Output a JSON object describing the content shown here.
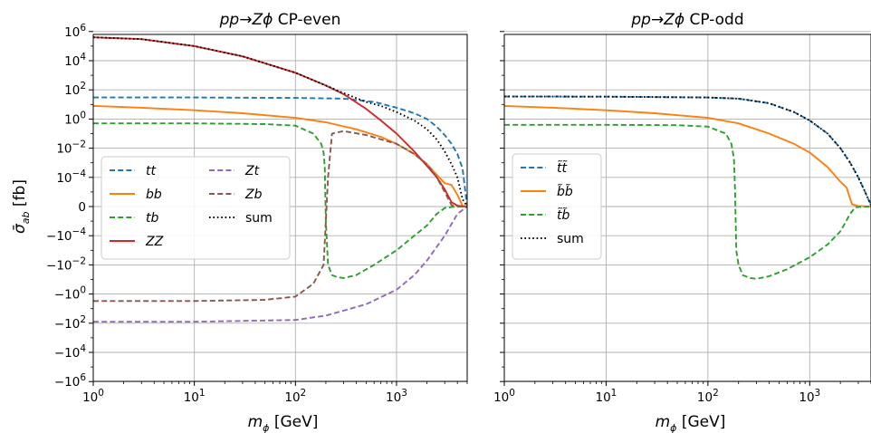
{
  "chart_data": [
    {
      "type": "line",
      "title": "pp→Zϕ CP-even",
      "xlabel": "m_ϕ [GeV]",
      "ylabel": "σ̄_ab [fb]",
      "xscale": "log",
      "yscale": "symlog",
      "xlim": [
        1,
        5000
      ],
      "ylim": [
        -2000000,
        2000000
      ],
      "xticks": [
        {
          "v": 1,
          "label": "10^0"
        },
        {
          "v": 10,
          "label": "10^1"
        },
        {
          "v": 100,
          "label": "10^2"
        },
        {
          "v": 1000,
          "label": "10^3"
        }
      ],
      "yticks": [
        {
          "v": 1000000,
          "label": "10^6"
        },
        {
          "v": 10000,
          "label": "10^4"
        },
        {
          "v": 100,
          "label": "10^2"
        },
        {
          "v": 1,
          "label": "10^0"
        },
        {
          "v": 0.01,
          "label": "10^-2"
        },
        {
          "v": 0.0001,
          "label": "10^-4"
        },
        {
          "v": 0,
          "label": "0"
        },
        {
          "v": -0.0001,
          "label": "-10^-4"
        },
        {
          "v": -0.01,
          "label": "-10^-2"
        },
        {
          "v": -1,
          "label": "-10^0"
        },
        {
          "v": -100,
          "label": "-10^2"
        },
        {
          "v": -10000,
          "label": "-10^4"
        },
        {
          "v": -1000000,
          "label": "-10^6"
        }
      ],
      "grid": true,
      "legend_position": "center-left",
      "series": [
        {
          "name": "tt",
          "color": "#1f77b4",
          "dash": "dashed",
          "x": [
            1,
            10,
            100,
            300,
            600,
            1000,
            1500,
            2000,
            2500,
            3000,
            3500,
            4000,
            4500,
            5000
          ],
          "y": [
            30,
            30,
            28,
            25,
            15,
            6,
            2.5,
            1,
            0.3,
            0.08,
            0.02,
            0.004,
            0.0004,
            0
          ]
        },
        {
          "name": "bb",
          "color": "#ff7f0e",
          "dash": "solid",
          "x": [
            1,
            3,
            10,
            30,
            100,
            200,
            400,
            700,
            1000,
            1500,
            2000,
            2500,
            3000,
            3500,
            4000,
            4500,
            5000
          ],
          "y": [
            8,
            6,
            4,
            2.5,
            1.2,
            0.6,
            0.2,
            0.06,
            0.02,
            0.004,
            0.0008,
            0.00015,
            4e-05,
            3e-05,
            8e-06,
            5e-07,
            0
          ]
        },
        {
          "name": "tb",
          "color": "#2ca02c",
          "dash": "dashed",
          "x": [
            1,
            10,
            50,
            100,
            150,
            180,
            190,
            195,
            200,
            210,
            230,
            260,
            300,
            400,
            600,
            1000,
            1500,
            2000,
            2500,
            3000,
            3500,
            3800,
            4200,
            5000
          ],
          "y": [
            0.5,
            0.5,
            0.45,
            0.35,
            0.1,
            0.02,
            0.005,
            0.0005,
            -1e-05,
            -0.01,
            -0.05,
            -0.07,
            -0.08,
            -0.05,
            -0.01,
            -0.001,
            -0.0001,
            -2e-05,
            -5e-06,
            -1e-06,
            -3e-07,
            -2e-07,
            -1e-07,
            0
          ]
        },
        {
          "name": "ZZ",
          "color": "#d62728",
          "dash": "solid",
          "x": [
            1,
            3,
            10,
            30,
            100,
            200,
            300,
            500,
            700,
            1000,
            1500,
            2000,
            2500,
            3000,
            3500,
            4000,
            4500,
            5000
          ],
          "y": [
            400000,
            300000,
            100000,
            20000,
            1500,
            200,
            50,
            5,
            0.8,
            0.1,
            0.006,
            0.0006,
            0.0001,
            1.5e-05,
            3e-06,
            6e-07,
            1e-07,
            0
          ]
        },
        {
          "name": "Zt",
          "color": "#9467bd",
          "dash": "dashed",
          "x": [
            1,
            10,
            100,
            200,
            500,
            1000,
            1500,
            2000,
            3000,
            4000,
            5000
          ],
          "y": [
            -80,
            -80,
            -60,
            -30,
            -5,
            -0.5,
            -0.05,
            -0.005,
            -0.0001,
            -5e-06,
            0
          ]
        },
        {
          "name": "Zb",
          "color": "#8c564b",
          "dash": "dashed",
          "x": [
            1,
            10,
            50,
            100,
            150,
            190,
            200,
            210,
            230,
            300,
            500,
            1000,
            1500,
            2000,
            2500,
            3000,
            3500,
            4000,
            4500,
            5000
          ],
          "y": [
            -3,
            -3,
            -2.5,
            -1.5,
            -0.2,
            -0.01,
            -1e-05,
            0.0001,
            0.1,
            0.15,
            0.08,
            0.02,
            0.004,
            0.0008,
            0.0001,
            1e-05,
            1e-06,
            3e-07,
            1e-07,
            0
          ]
        },
        {
          "name": "sum",
          "color": "#000000",
          "dash": "dotted",
          "x": [
            1,
            3,
            10,
            30,
            100,
            200,
            300,
            500,
            700,
            1000,
            1500,
            2000,
            2500,
            3000,
            3500,
            4000,
            4500,
            5000
          ],
          "y": [
            400000,
            300000,
            100000,
            20000,
            1500,
            200,
            60,
            15,
            8,
            3,
            0.8,
            0.2,
            0.04,
            0.006,
            0.0008,
            0.0001,
            5e-06,
            0
          ]
        }
      ]
    },
    {
      "type": "line",
      "title": "pp→Zϕ CP-odd",
      "xlabel": "m_ϕ [GeV]",
      "ylabel": "",
      "xscale": "log",
      "yscale": "symlog",
      "xlim": [
        1,
        4000
      ],
      "ylim": [
        -2000000,
        2000000
      ],
      "xticks": [
        {
          "v": 1,
          "label": "10^0"
        },
        {
          "v": 10,
          "label": "10^1"
        },
        {
          "v": 100,
          "label": "10^2"
        },
        {
          "v": 1000,
          "label": "10^3"
        }
      ],
      "grid": true,
      "legend_position": "center-left",
      "series": [
        {
          "name": "t̃t̃",
          "color": "#1f77b4",
          "dash": "dashed",
          "x": [
            1,
            10,
            100,
            200,
            400,
            700,
            1000,
            1500,
            2000,
            2500,
            3000,
            3500,
            4000
          ],
          "y": [
            35,
            34,
            30,
            25,
            12,
            3,
            0.8,
            0.1,
            0.01,
            0.001,
            0.0001,
            1e-05,
            1e-06
          ]
        },
        {
          "name": "b̃b̃",
          "color": "#ff7f0e",
          "dash": "solid",
          "x": [
            1,
            3,
            10,
            30,
            100,
            200,
            400,
            700,
            1000,
            1500,
            2000,
            2300,
            2600,
            3000,
            3500,
            4000
          ],
          "y": [
            8,
            6,
            4,
            2.5,
            1.2,
            0.5,
            0.1,
            0.02,
            0.005,
            0.0005,
            5e-05,
            2e-05,
            1.5e-06,
            4e-07,
            1.5e-07,
            1e-07
          ]
        },
        {
          "name": "t̃b̃",
          "color": "#2ca02c",
          "dash": "dashed",
          "x": [
            1,
            10,
            50,
            100,
            150,
            170,
            180,
            185,
            190,
            200,
            220,
            260,
            300,
            400,
            600,
            1000,
            1500,
            2000,
            2500,
            2800,
            3200,
            4000
          ],
          "y": [
            0.4,
            0.4,
            0.38,
            0.3,
            0.1,
            0.02,
            0.002,
            1e-05,
            -0.001,
            -0.01,
            -0.05,
            -0.08,
            -0.09,
            -0.06,
            -0.02,
            -0.003,
            -0.0004,
            -5e-05,
            -5e-06,
            -5e-07,
            -2e-07,
            -1e-07
          ]
        },
        {
          "name": "sum",
          "color": "#000000",
          "dash": "dotted",
          "x": [
            1,
            10,
            100,
            200,
            400,
            700,
            1000,
            1500,
            2000,
            2500,
            3000,
            3500,
            4000
          ],
          "y": [
            35,
            34,
            30,
            25,
            12,
            3,
            0.8,
            0.1,
            0.01,
            0.001,
            0.0001,
            1e-05,
            1e-06
          ]
        }
      ]
    }
  ]
}
